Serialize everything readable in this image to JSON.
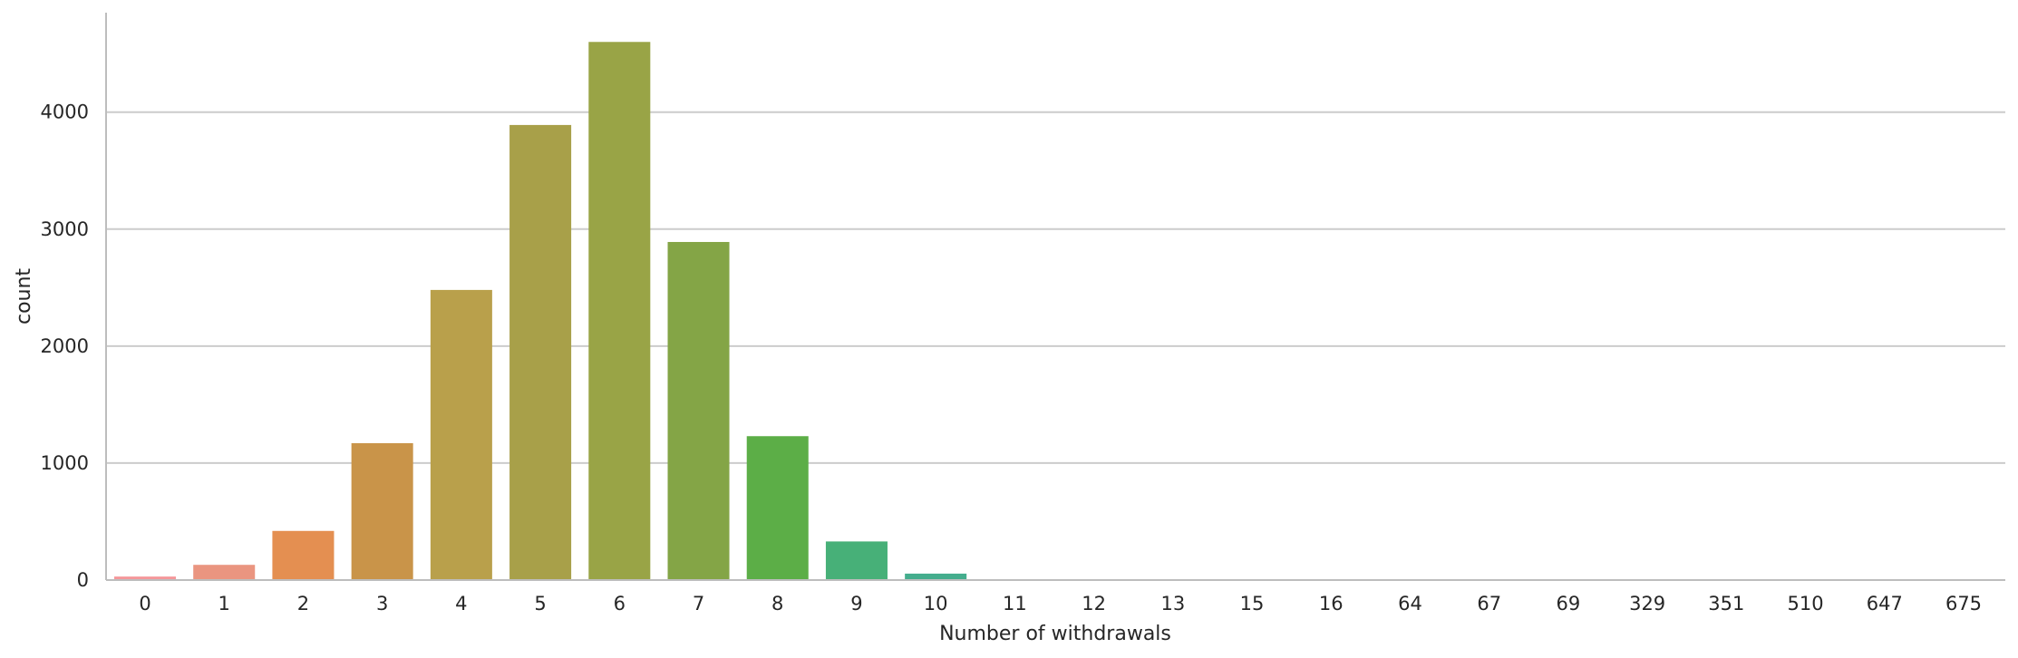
{
  "chart_data": {
    "type": "bar",
    "title": "",
    "xlabel": "Number of withdrawals",
    "ylabel": "count",
    "categories": [
      "0",
      "1",
      "2",
      "3",
      "4",
      "5",
      "6",
      "7",
      "8",
      "9",
      "10",
      "11",
      "12",
      "13",
      "15",
      "16",
      "64",
      "67",
      "69",
      "329",
      "351",
      "510",
      "647",
      "675"
    ],
    "values": [
      30,
      130,
      420,
      1170,
      2480,
      3890,
      4600,
      2890,
      1230,
      330,
      55,
      6,
      3,
      2,
      1,
      1,
      1,
      1,
      1,
      1,
      1,
      1,
      1,
      1
    ],
    "ylim": [
      0,
      4850
    ],
    "yticks": [
      0,
      1000,
      2000,
      3000,
      4000
    ],
    "grid": "horizontal",
    "colors": [
      "#f5979a",
      "#ea9580",
      "#e48f51",
      "#c99449",
      "#b9a04b",
      "#a8a049",
      "#99a446",
      "#84a546",
      "#5cae47",
      "#47b078",
      "#44ad8d",
      "#43ab98",
      "#42a9a2",
      "#40a7ab",
      "#41a6b6",
      "#45a2c6",
      "#5798d7",
      "#8c8fde",
      "#b08ae0",
      "#cb82df",
      "#e276d5",
      "#f06dc1",
      "#f46faf",
      "#f4729c"
    ]
  }
}
